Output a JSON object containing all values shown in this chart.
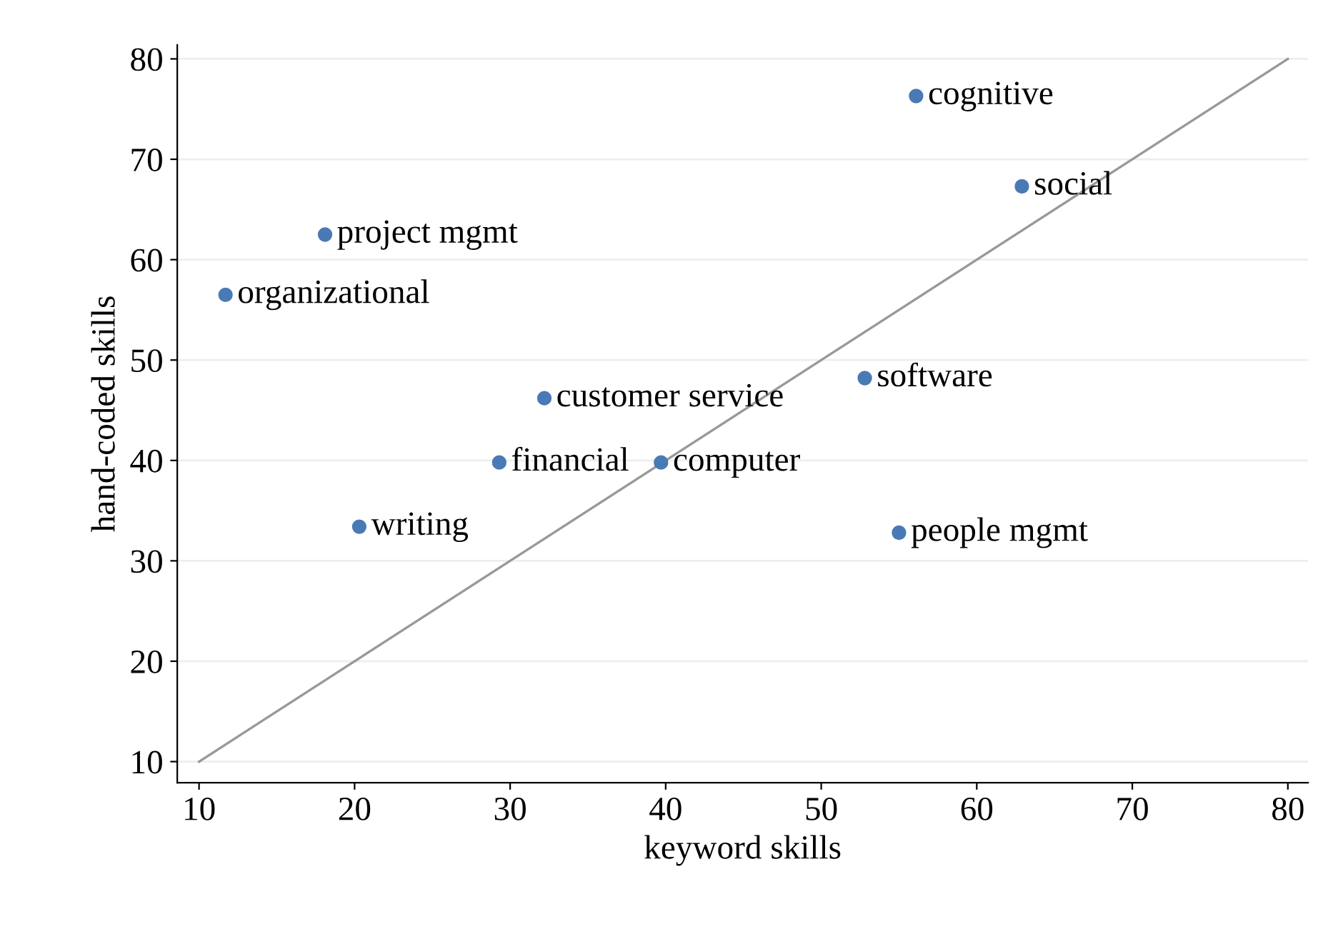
{
  "chart_data": {
    "type": "scatter",
    "xlabel": "keyword skills",
    "ylabel": "hand-coded skills",
    "xlim": [
      8.6,
      81.3
    ],
    "ylim": [
      7.9,
      81.4
    ],
    "xticks": [
      10,
      20,
      30,
      40,
      50,
      60,
      70,
      80
    ],
    "yticks": [
      10,
      20,
      30,
      40,
      50,
      60,
      70,
      80
    ],
    "grid": "y",
    "series": [
      {
        "marker": "circle",
        "color": "#4a7ab5",
        "x": [
          56.1,
          62.9,
          18.1,
          11.7,
          32.2,
          52.8,
          29.3,
          39.7,
          20.3,
          55.0
        ],
        "values": [
          76.3,
          67.3,
          62.5,
          56.5,
          46.2,
          48.2,
          39.8,
          39.8,
          33.4,
          32.8
        ]
      },
      {
        "type": "line",
        "marker": "none",
        "color": "#999999",
        "x": [
          10,
          80
        ],
        "values": [
          10,
          80
        ]
      }
    ],
    "annotations": [
      {
        "text": "cognitive",
        "x": 56.1,
        "y": 76.3
      },
      {
        "text": "social",
        "x": 62.9,
        "y": 67.3
      },
      {
        "text": "project mgmt",
        "x": 18.1,
        "y": 62.5
      },
      {
        "text": "organizational",
        "x": 11.7,
        "y": 56.5
      },
      {
        "text": "customer service",
        "x": 32.2,
        "y": 46.2
      },
      {
        "text": "software",
        "x": 52.8,
        "y": 48.2
      },
      {
        "text": "financial",
        "x": 29.3,
        "y": 39.8
      },
      {
        "text": "computer",
        "x": 39.7,
        "y": 39.8
      },
      {
        "text": "writing",
        "x": 20.3,
        "y": 33.4
      },
      {
        "text": "people mgmt",
        "x": 55.0,
        "y": 32.8
      }
    ]
  }
}
